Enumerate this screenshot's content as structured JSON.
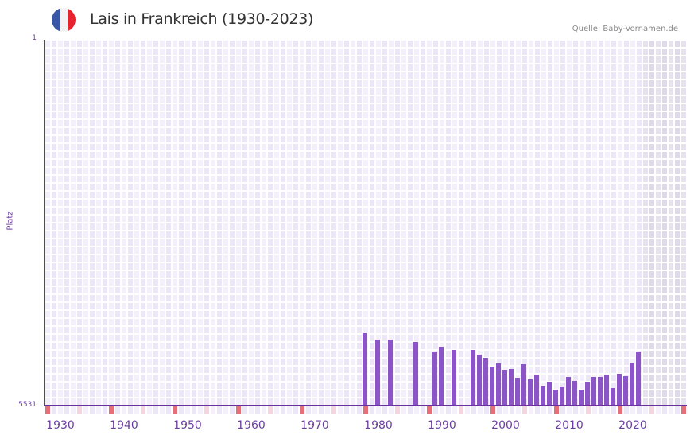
{
  "header": {
    "title": "Lais in Frankreich (1930-2023)",
    "source": "Quelle: Baby-Vornamen.de",
    "flag_colors": [
      "#3a56a6",
      "#f2f2f4",
      "#e8232f"
    ]
  },
  "colors": {
    "bar": "#8b55c8",
    "axis": "#6b2fa0",
    "label": "#6b3fa0",
    "grid_a": "#f3effb",
    "grid_b": "#ece6f8",
    "shade_a": "#e6e2ee",
    "shade_b": "#dfdaea",
    "tick_decade": "#e5707a",
    "tick_half": "#f3d6e0",
    "tick_plain_a": "#f3effb",
    "tick_plain_b": "#ece6f8"
  },
  "chart_data": {
    "type": "bar",
    "title": "Lais in Frankreich (1930-2023)",
    "xlabel": "",
    "ylabel": "Platz",
    "y_inverted": true,
    "ylim": [
      5531,
      1
    ],
    "y_tick_labels": [
      "1",
      "5531"
    ],
    "x_range": [
      1928,
      2028
    ],
    "x_tick_labels": [
      "1930",
      "1940",
      "1950",
      "1960",
      "1970",
      "1980",
      "1990",
      "2000",
      "2010",
      "2020"
    ],
    "shaded_from_year": 2022,
    "grid": true,
    "legend": null,
    "series": [
      {
        "name": "Platz",
        "x": [
          1978,
          1980,
          1982,
          1986,
          1989,
          1990,
          1992,
          1995,
          1996,
          1997,
          1998,
          1999,
          2000,
          2001,
          2002,
          2003,
          2004,
          2005,
          2006,
          2007,
          2008,
          2009,
          2010,
          2011,
          2012,
          2013,
          2014,
          2015,
          2016,
          2017,
          2018,
          2019,
          2020,
          2021
        ],
        "values": [
          4437,
          4533,
          4533,
          4569,
          4714,
          4641,
          4689,
          4689,
          4762,
          4810,
          4942,
          4894,
          4990,
          4978,
          5110,
          4906,
          5134,
          5062,
          5230,
          5170,
          5291,
          5242,
          5098,
          5158,
          5291,
          5170,
          5098,
          5098,
          5062,
          5267,
          5050,
          5086,
          4882,
          4714
        ]
      }
    ]
  }
}
